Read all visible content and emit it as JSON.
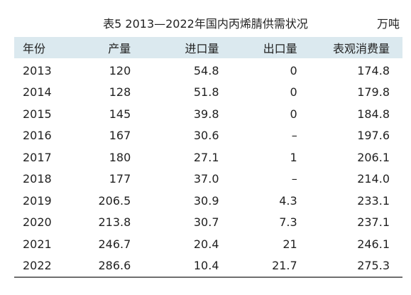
{
  "table": {
    "title": "表5  2013—2022年国内丙烯腈供需状况",
    "unit": "万吨",
    "headers": [
      "年份",
      "产量",
      "进口量",
      "出口量",
      "表观消费量"
    ],
    "rows": [
      [
        "2013",
        "120",
        "54.8",
        "0",
        "174.8"
      ],
      [
        "2014",
        "128",
        "51.8",
        "0",
        "179.8"
      ],
      [
        "2015",
        "145",
        "39.8",
        "0",
        "184.8"
      ],
      [
        "2016",
        "167",
        "30.6",
        "–",
        "197.6"
      ],
      [
        "2017",
        "180",
        "27.1",
        "1",
        "206.1"
      ],
      [
        "2018",
        "177",
        "37.0",
        "–",
        "214.0"
      ],
      [
        "2019",
        "206.5",
        "30.9",
        "4.3",
        "233.1"
      ],
      [
        "2020",
        "213.8",
        "30.7",
        "7.3",
        "237.1"
      ],
      [
        "2021",
        "246.7",
        "20.4",
        "21",
        "246.1"
      ],
      [
        "2022",
        "286.6",
        "10.4",
        "21.7",
        "275.3"
      ]
    ],
    "header_bg": "#dbe9ef",
    "bottom_rule_color": "#6f6f6f"
  }
}
